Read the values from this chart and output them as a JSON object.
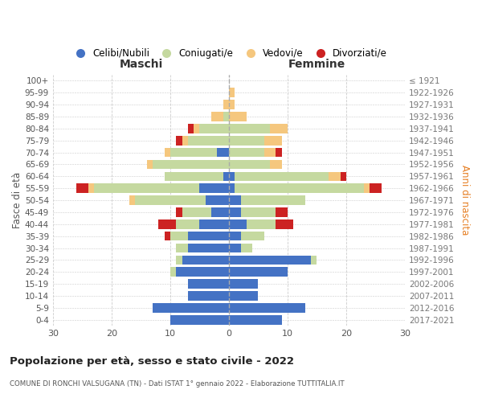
{
  "age_groups": [
    "0-4",
    "5-9",
    "10-14",
    "15-19",
    "20-24",
    "25-29",
    "30-34",
    "35-39",
    "40-44",
    "45-49",
    "50-54",
    "55-59",
    "60-64",
    "65-69",
    "70-74",
    "75-79",
    "80-84",
    "85-89",
    "90-94",
    "95-99",
    "100+"
  ],
  "birth_years": [
    "2017-2021",
    "2012-2016",
    "2007-2011",
    "2002-2006",
    "1997-2001",
    "1992-1996",
    "1987-1991",
    "1982-1986",
    "1977-1981",
    "1972-1976",
    "1967-1971",
    "1962-1966",
    "1957-1961",
    "1952-1956",
    "1947-1951",
    "1942-1946",
    "1937-1941",
    "1932-1936",
    "1927-1931",
    "1922-1926",
    "≤ 1921"
  ],
  "maschi": {
    "celibi": [
      10,
      13,
      7,
      7,
      9,
      8,
      7,
      7,
      5,
      3,
      4,
      5,
      1,
      0,
      2,
      0,
      0,
      0,
      0,
      0,
      0
    ],
    "coniugati": [
      0,
      0,
      0,
      0,
      1,
      1,
      2,
      3,
      4,
      5,
      12,
      18,
      10,
      13,
      8,
      7,
      5,
      1,
      0,
      0,
      0
    ],
    "vedovi": [
      0,
      0,
      0,
      0,
      0,
      0,
      0,
      0,
      0,
      0,
      1,
      1,
      0,
      1,
      1,
      1,
      1,
      2,
      1,
      0,
      0
    ],
    "divorziati": [
      0,
      0,
      0,
      0,
      0,
      0,
      0,
      1,
      3,
      1,
      0,
      2,
      0,
      0,
      0,
      1,
      1,
      0,
      0,
      0,
      0
    ]
  },
  "femmine": {
    "nubili": [
      9,
      13,
      5,
      5,
      10,
      14,
      2,
      2,
      3,
      2,
      2,
      1,
      1,
      0,
      0,
      0,
      0,
      0,
      0,
      0,
      0
    ],
    "coniugate": [
      0,
      0,
      0,
      0,
      0,
      1,
      2,
      4,
      5,
      6,
      11,
      22,
      16,
      7,
      6,
      6,
      7,
      0,
      0,
      0,
      0
    ],
    "vedove": [
      0,
      0,
      0,
      0,
      0,
      0,
      0,
      0,
      0,
      0,
      0,
      1,
      2,
      2,
      2,
      3,
      3,
      3,
      1,
      1,
      0
    ],
    "divorziate": [
      0,
      0,
      0,
      0,
      0,
      0,
      0,
      0,
      3,
      2,
      0,
      2,
      1,
      0,
      1,
      0,
      0,
      0,
      0,
      0,
      0
    ]
  },
  "colors": {
    "celibi_nubili": "#4472c4",
    "coniugati": "#c5d9a0",
    "vedovi": "#f5c77e",
    "divorziati": "#cc2222"
  },
  "xlim": 30,
  "title": "Popolazione per età, sesso e stato civile - 2022",
  "subtitle": "COMUNE DI RONCHI VALSUGANA (TN) - Dati ISTAT 1° gennaio 2022 - Elaborazione TUTTITALIA.IT",
  "xlabel_left": "Maschi",
  "xlabel_right": "Femmine",
  "ylabel_left": "Fasce di età",
  "ylabel_right": "Anni di nascita",
  "legend_labels": [
    "Celibi/Nubili",
    "Coniugati/e",
    "Vedovi/e",
    "Divorziati/e"
  ],
  "bg_color": "#ffffff",
  "grid_color": "#cccccc"
}
